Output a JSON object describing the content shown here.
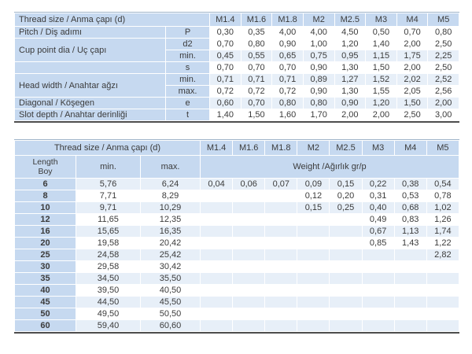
{
  "colors": {
    "header_blue": "#c6d9f0",
    "band_blue": "#e7eff8",
    "rule_dark": "#4d4d4d",
    "text": "#3b3b3b"
  },
  "table1": {
    "title": "Thread size / Anma çapı (d)",
    "sizes": [
      "M1.4",
      "M1.6",
      "M1.8",
      "M2",
      "M2.5",
      "M3",
      "M4",
      "M5"
    ],
    "groups": [
      {
        "label": "Pitch / Diş adımı",
        "rows": [
          {
            "symbol": "P",
            "shaded": false,
            "values": [
              "0,30",
              "0,35",
              "4,00",
              "4,00",
              "4,50",
              "0,50",
              "0,70",
              "0,80"
            ]
          }
        ]
      },
      {
        "label": "Cup point dia / Uç çapı",
        "rows": [
          {
            "symbol": "d2",
            "shaded": false,
            "values": [
              "0,70",
              "0,80",
              "0,90",
              "1,00",
              "1,20",
              "1,40",
              "2,00",
              "2,50"
            ]
          },
          {
            "symbol": "min.",
            "shaded": true,
            "values": [
              "0,45",
              "0,55",
              "0,65",
              "0,75",
              "0,95",
              "1,15",
              "1,75",
              "2,25"
            ]
          }
        ]
      },
      {
        "label": "",
        "rows": [
          {
            "symbol": "s",
            "shaded": false,
            "values": [
              "0,70",
              "0,70",
              "0,70",
              "0,90",
              "1,30",
              "1,50",
              "2,00",
              "2,50"
            ]
          }
        ]
      },
      {
        "label": "Head width / Anahtar ağzı",
        "rows": [
          {
            "symbol": "min.",
            "shaded": true,
            "values": [
              "0,71",
              "0,71",
              "0,71",
              "0,89",
              "1,27",
              "1,52",
              "2,02",
              "2,52"
            ]
          },
          {
            "symbol": "max.",
            "shaded": false,
            "values": [
              "0,72",
              "0,72",
              "0,72",
              "0,90",
              "1,30",
              "1,55",
              "2,05",
              "2,56"
            ]
          }
        ]
      },
      {
        "label": "Diagonal / Köşegen",
        "rows": [
          {
            "symbol": "e",
            "shaded": true,
            "values": [
              "0,60",
              "0,70",
              "0,80",
              "0,80",
              "0,90",
              "1,20",
              "1,50",
              "2,00"
            ]
          }
        ]
      },
      {
        "label": "Slot depth / Anahtar derinliği",
        "rows": [
          {
            "symbol": "t",
            "shaded": false,
            "values": [
              "1,40",
              "1,50",
              "1,60",
              "1,70",
              "2,00",
              "2,00",
              "2,50",
              "3,00"
            ]
          }
        ]
      }
    ]
  },
  "table2": {
    "title": "Thread size / Anma çapı (d)",
    "sizes": [
      "M1.4",
      "M1.6",
      "M1.8",
      "M2",
      "M2.5",
      "M3",
      "M4",
      "M5"
    ],
    "length_label_line1": "Length",
    "length_label_line2": "Boy",
    "min_label": "min.",
    "max_label": "max.",
    "weight_label": "Weight /Ağırlık gr/p",
    "rows": [
      {
        "length": "6",
        "min": "5,76",
        "max": "6,24",
        "weights": [
          "0,04",
          "0,06",
          "0,07",
          "0,09",
          "0,15",
          "0,22",
          "0,38",
          "0,54"
        ]
      },
      {
        "length": "8",
        "min": "7,71",
        "max": "8,29",
        "weights": [
          "",
          "",
          "",
          "0,12",
          "0,20",
          "0,31",
          "0,53",
          "0,78"
        ]
      },
      {
        "length": "10",
        "min": "9,71",
        "max": "10,29",
        "weights": [
          "",
          "",
          "",
          "0,15",
          "0,25",
          "0,40",
          "0,68",
          "1,02"
        ]
      },
      {
        "length": "12",
        "min": "11,65",
        "max": "12,35",
        "weights": [
          "",
          "",
          "",
          "",
          "",
          "0,49",
          "0,83",
          "1,26"
        ]
      },
      {
        "length": "16",
        "min": "15,65",
        "max": "16,35",
        "weights": [
          "",
          "",
          "",
          "",
          "",
          "0,67",
          "1,13",
          "1,74"
        ]
      },
      {
        "length": "20",
        "min": "19,58",
        "max": "20,42",
        "weights": [
          "",
          "",
          "",
          "",
          "",
          "0,85",
          "1,43",
          "1,22"
        ]
      },
      {
        "length": "25",
        "min": "24,58",
        "max": "25,42",
        "weights": [
          "",
          "",
          "",
          "",
          "",
          "",
          "",
          "2,82"
        ]
      },
      {
        "length": "30",
        "min": "29,58",
        "max": "30,42",
        "weights": [
          "",
          "",
          "",
          "",
          "",
          "",
          "",
          ""
        ]
      },
      {
        "length": "35",
        "min": "34,50",
        "max": "35,50",
        "weights": [
          "",
          "",
          "",
          "",
          "",
          "",
          "",
          ""
        ]
      },
      {
        "length": "40",
        "min": "39,50",
        "max": "40,50",
        "weights": [
          "",
          "",
          "",
          "",
          "",
          "",
          "",
          ""
        ]
      },
      {
        "length": "45",
        "min": "44,50",
        "max": "45,50",
        "weights": [
          "",
          "",
          "",
          "",
          "",
          "",
          "",
          ""
        ]
      },
      {
        "length": "50",
        "min": "49,50",
        "max": "50,50",
        "weights": [
          "",
          "",
          "",
          "",
          "",
          "",
          "",
          ""
        ]
      },
      {
        "length": "60",
        "min": "59,40",
        "max": "60,60",
        "weights": [
          "",
          "",
          "",
          "",
          "",
          "",
          "",
          ""
        ]
      }
    ]
  }
}
